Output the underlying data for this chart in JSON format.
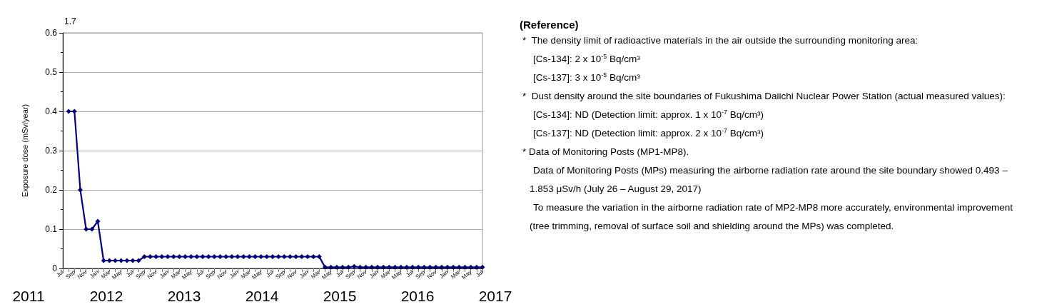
{
  "chart_data": [
    {
      "type": "line",
      "ylabel": "Exposure dose (mSv/year)",
      "categories": [
        "Jul",
        null,
        "Sep",
        null,
        "Nov",
        null,
        "Jan",
        null,
        "Mar",
        null,
        "May",
        null,
        "Jul",
        null,
        "Sep",
        null,
        "Nov",
        null,
        "Jan",
        null,
        "Mar",
        null,
        "May",
        null,
        "Jul",
        null,
        "Sep",
        null,
        "Nov",
        null,
        "Jan",
        null,
        "Mar",
        null,
        "May",
        null,
        "Jul",
        null,
        "Sep",
        null,
        "Nov",
        null,
        "Jan",
        null,
        "Mar",
        null,
        "May",
        null,
        "Jul",
        null,
        "Sep",
        null,
        "Nov",
        null,
        "Jan",
        null,
        "Mar",
        null,
        "May",
        null,
        "Jul",
        null,
        "Sep",
        null,
        "Nov",
        null,
        "Jan",
        null,
        "Mar",
        null,
        "May",
        null,
        "Jul"
      ],
      "series": [
        {
          "color": "#000080",
          "values": [
            null,
            0.4,
            0.4,
            0.2,
            0.1,
            0.1,
            0.12,
            0.02,
            0.02,
            0.02,
            0.02,
            0.02,
            0.02,
            0.02,
            0.03,
            0.03,
            0.03,
            0.03,
            0.03,
            0.03,
            0.03,
            0.03,
            0.03,
            0.03,
            0.03,
            0.03,
            0.03,
            0.03,
            0.03,
            0.03,
            0.03,
            0.03,
            0.03,
            0.03,
            0.03,
            0.03,
            0.03,
            0.03,
            0.03,
            0.03,
            0.03,
            0.03,
            0.03,
            0.03,
            0.03,
            0.003,
            0.003,
            0.003,
            0.003,
            0.003,
            0.005,
            0.003,
            0.003,
            0.003,
            0.003,
            0.003,
            0.003,
            0.003,
            0.003,
            0.003,
            0.003,
            0.003,
            0.003,
            0.003,
            0.003,
            0.003,
            0.003,
            0.003,
            0.003,
            0.003,
            0.003,
            0.003,
            0.003
          ]
        }
      ],
      "ylim": [
        0,
        0.6
      ],
      "yticks": [
        0,
        0.1,
        0.2,
        0.3,
        0.4,
        0.5,
        0.6
      ],
      "grid": "y",
      "marker": "diamond",
      "annotations": [
        "1.7",
        "2011",
        "2012",
        "2013",
        "2014",
        "2015",
        "2016",
        "2017"
      ]
    },
    {
      "type": "other",
      "title": "(Reference)",
      "annotations": [
        "*  The density limit of radioactive materials in the air outside the surrounding monitoring area:",
        "    [Cs-134]: 2 x 10$^{-5}$ Bq/cm³",
        "    [Cs-137]: 3 x 10$^{-5}$ Bq/cm³",
        "*  Dust density around the site boundaries of Fukushima Daiichi Nuclear Power Station (actual measured values):",
        "    [Cs-134]: ND (Detection limit: approx. 1 x 10$^{-7}$ Bq/cm³)",
        "    [Cs-137]: ND (Detection limit: approx. 2 x 10$^{-7}$ Bq/cm³)",
        "* Data of Monitoring Posts (MP1-MP8).",
        "    Data of Monitoring Posts (MPs) measuring the airborne radiation rate around the site boundary showed 0.493 – 1.853 μSv/h (July 26 – August 29, 2017)",
        "    To measure the variation in the airborne radiation rate of MP2-MP8 more accurately, environmental improvement (tree trimming, removal of surface soil and shielding around the MPs) was completed."
      ]
    }
  ]
}
